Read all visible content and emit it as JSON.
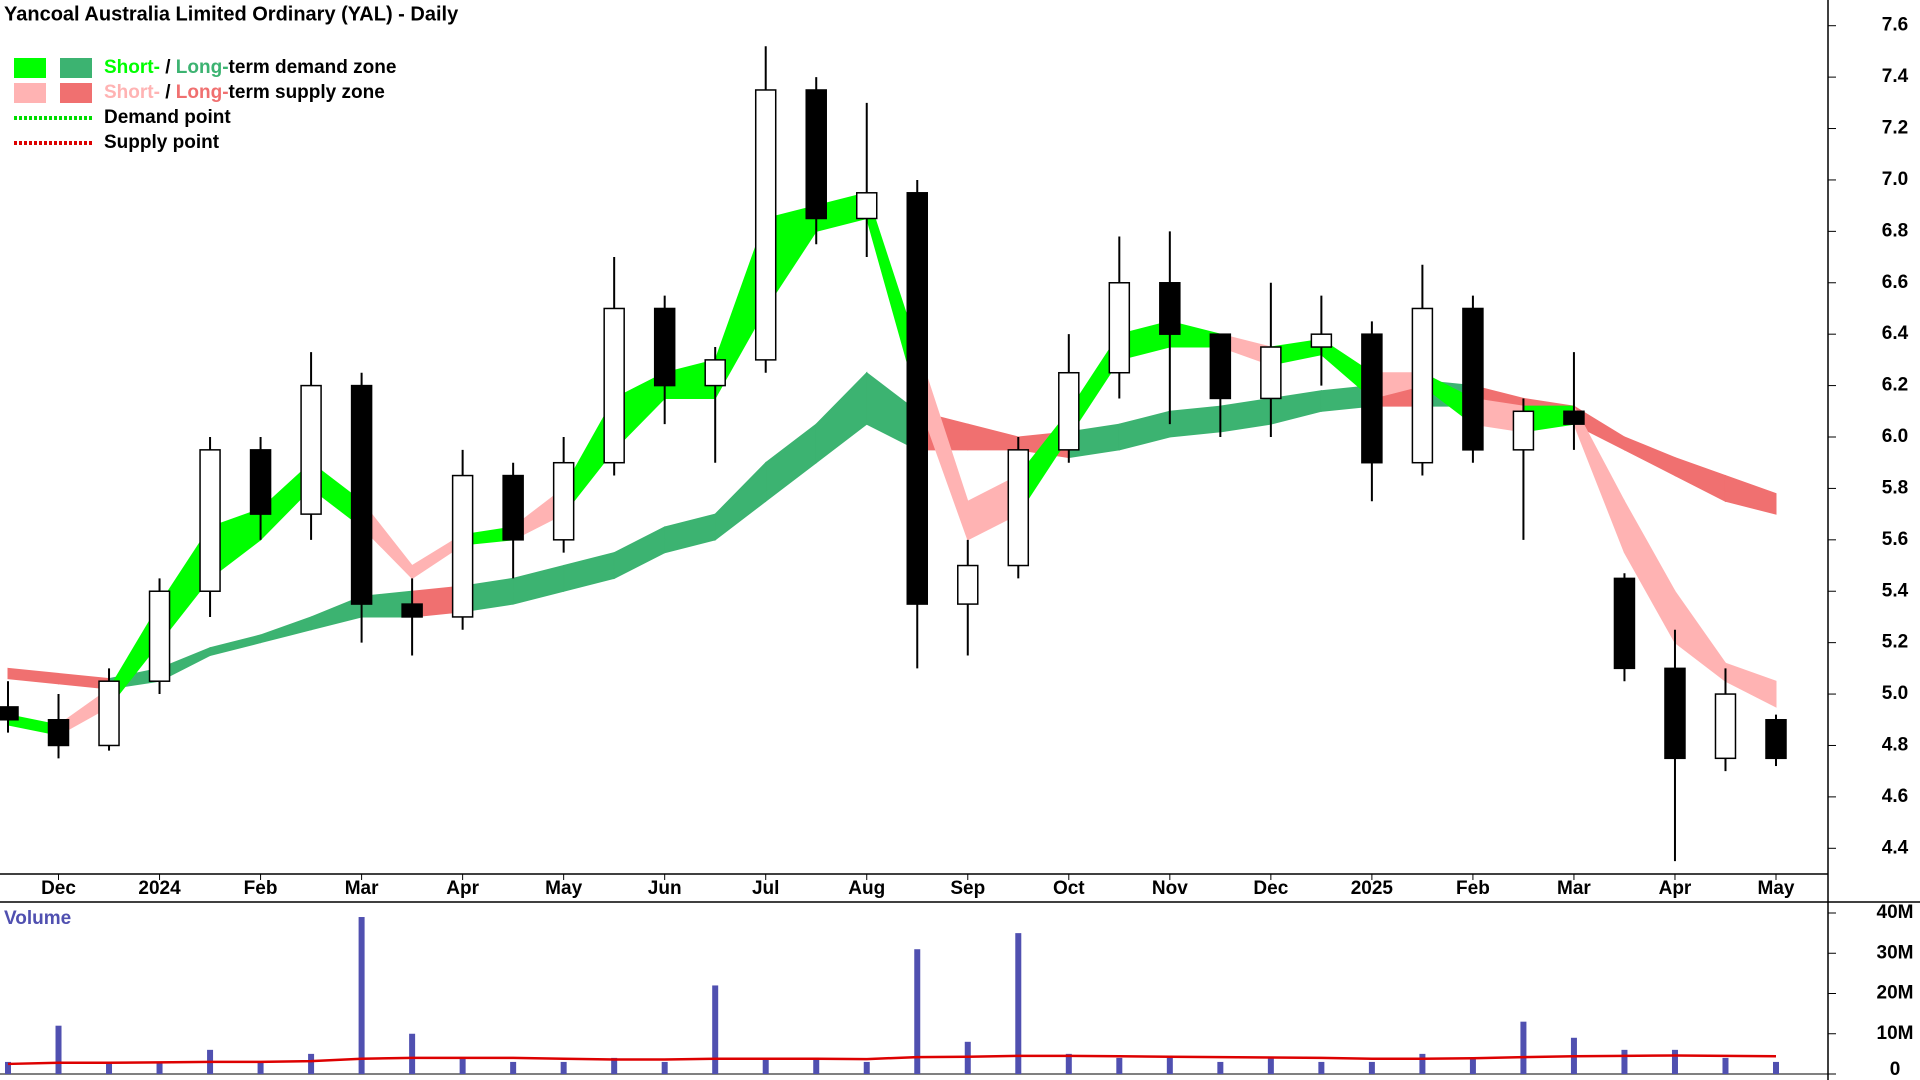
{
  "chart_data": {
    "type": "candlestick",
    "title": "Yancoal Australia Limited Ordinary (YAL) - Daily",
    "legend": [
      {
        "parts": [
          "Short-",
          " / ",
          "Long-",
          "term demand zone"
        ],
        "colors": [
          "#00ff00",
          "#3cb371"
        ]
      },
      {
        "parts": [
          "Short-",
          " / ",
          "Long-",
          "term supply zone"
        ],
        "colors": [
          "#ffb3b3",
          "#f07070"
        ]
      },
      {
        "label": "Demand point",
        "color": "#00dd00"
      },
      {
        "label": "Supply point",
        "color": "#dd0000"
      }
    ],
    "categories": [
      null,
      "Dec",
      null,
      "2024",
      null,
      "Feb",
      null,
      "Mar",
      null,
      "Apr",
      null,
      "May",
      null,
      "Jun",
      null,
      "Jul",
      null,
      "Aug",
      null,
      "Sep",
      null,
      "Oct",
      null,
      "Nov",
      null,
      "Dec",
      null,
      "2025",
      null,
      "Feb",
      null,
      "Mar",
      null,
      "Apr",
      null,
      "May"
    ],
    "open": [
      4.95,
      4.9,
      4.8,
      5.05,
      5.4,
      5.95,
      5.7,
      6.2,
      5.35,
      5.3,
      5.85,
      5.6,
      5.9,
      6.5,
      6.2,
      6.3,
      7.35,
      6.85,
      6.95,
      5.35,
      5.5,
      5.95,
      6.25,
      6.6,
      6.4,
      6.15,
      6.35,
      6.4,
      5.9,
      6.5,
      5.95,
      6.1,
      5.45,
      5.1,
      4.75,
      4.9
    ],
    "high": [
      5.05,
      5.0,
      5.1,
      5.45,
      6.0,
      6.0,
      6.33,
      6.25,
      5.45,
      5.95,
      5.9,
      6.0,
      6.7,
      6.55,
      6.35,
      7.52,
      7.4,
      7.3,
      7.0,
      5.6,
      6.0,
      6.4,
      6.78,
      6.8,
      6.4,
      6.6,
      6.55,
      6.45,
      6.67,
      6.55,
      6.15,
      6.33,
      5.47,
      5.25,
      5.1,
      4.92
    ],
    "low": [
      4.85,
      4.75,
      4.78,
      5.0,
      5.3,
      5.6,
      5.6,
      5.2,
      5.15,
      5.25,
      5.45,
      5.55,
      5.85,
      6.05,
      5.9,
      6.25,
      6.75,
      6.7,
      5.1,
      5.15,
      5.45,
      5.9,
      6.15,
      6.05,
      6.0,
      6.0,
      6.2,
      5.75,
      5.85,
      5.9,
      5.6,
      5.95,
      5.05,
      4.35,
      4.7,
      4.72
    ],
    "close": [
      4.9,
      4.8,
      5.05,
      5.4,
      5.95,
      5.7,
      6.2,
      5.35,
      5.3,
      5.85,
      5.6,
      5.9,
      6.5,
      6.2,
      6.3,
      7.35,
      6.85,
      6.95,
      5.35,
      5.5,
      5.95,
      6.25,
      6.6,
      6.4,
      6.15,
      6.35,
      6.4,
      5.9,
      6.5,
      5.95,
      6.1,
      6.05,
      5.1,
      4.75,
      5.0,
      4.75
    ],
    "short_zone": {
      "upper": [
        4.92,
        4.88,
        5.02,
        5.35,
        5.65,
        5.72,
        5.9,
        5.75,
        5.5,
        5.62,
        5.65,
        5.8,
        6.15,
        6.25,
        6.3,
        6.85,
        6.9,
        6.95,
        6.35,
        5.75,
        5.85,
        6.1,
        6.4,
        6.45,
        6.4,
        6.35,
        6.38,
        6.25,
        6.25,
        6.15,
        6.12,
        6.12,
        5.75,
        5.4,
        5.12,
        5.05
      ],
      "lower": [
        4.88,
        4.84,
        4.95,
        5.2,
        5.45,
        5.6,
        5.8,
        5.65,
        5.45,
        5.58,
        5.6,
        5.7,
        5.95,
        6.15,
        6.15,
        6.5,
        6.8,
        6.85,
        6.15,
        5.6,
        5.7,
        6.0,
        6.3,
        6.35,
        6.35,
        6.28,
        6.32,
        6.15,
        6.2,
        6.05,
        6.02,
        6.05,
        5.55,
        5.2,
        5.05,
        4.95
      ]
    },
    "long_zone": {
      "upper": [
        5.1,
        5.08,
        5.06,
        5.1,
        5.18,
        5.23,
        5.3,
        5.38,
        5.4,
        5.42,
        5.45,
        5.5,
        5.55,
        5.65,
        5.7,
        5.9,
        6.05,
        6.25,
        6.1,
        6.05,
        6.0,
        6.02,
        6.05,
        6.1,
        6.12,
        6.15,
        6.18,
        6.2,
        6.22,
        6.2,
        6.15,
        6.12,
        6.0,
        5.92,
        5.85,
        5.78
      ],
      "lower": [
        5.06,
        5.04,
        5.02,
        5.05,
        5.15,
        5.2,
        5.25,
        5.3,
        5.3,
        5.32,
        5.35,
        5.4,
        5.45,
        5.55,
        5.6,
        5.75,
        5.9,
        6.05,
        5.95,
        5.95,
        5.95,
        5.92,
        5.95,
        6.0,
        6.02,
        6.05,
        6.1,
        6.12,
        6.12,
        6.12,
        6.08,
        6.05,
        5.95,
        5.85,
        5.75,
        5.7
      ]
    },
    "ylim": [
      4.3,
      7.7
    ],
    "yticks": [
      4.4,
      4.6,
      4.8,
      {
        "value": 5,
        "label": "5.0"
      },
      5.2,
      5.4,
      5.6,
      5.8,
      {
        "value": 6,
        "label": "6.0"
      },
      6.2,
      6.4,
      6.6,
      6.8,
      {
        "value": 7,
        "label": "7.0"
      },
      7.2,
      7.4,
      7.6
    ],
    "volume": {
      "label": "Volume",
      "color": "#5050b0",
      "average_color": "#dd0000",
      "values": [
        3000000,
        12000000,
        3000000,
        3000000,
        6000000,
        3000000,
        5000000,
        39000000,
        10000000,
        4000000,
        3000000,
        3000000,
        4000000,
        3000000,
        22000000,
        4000000,
        4000000,
        3000000,
        31000000,
        8000000,
        35000000,
        5000000,
        4000000,
        4000000,
        3000000,
        4000000,
        3000000,
        3000000,
        5000000,
        4000000,
        13000000,
        9000000,
        6000000,
        6000000,
        4000000,
        3000000
      ],
      "average": [
        2500000,
        2800000,
        2800000,
        2900000,
        3000000,
        3000000,
        3200000,
        3800000,
        4000000,
        4000000,
        4000000,
        3800000,
        3600000,
        3600000,
        3800000,
        3800000,
        3800000,
        3700000,
        4200000,
        4300000,
        4500000,
        4500000,
        4400000,
        4300000,
        4200000,
        4100000,
        4000000,
        3800000,
        3800000,
        3900000,
        4200000,
        4400000,
        4500000,
        4600000,
        4500000,
        4400000
      ],
      "ylim": [
        0,
        40000000
      ],
      "yticks": [
        0,
        {
          "value": 10000000,
          "label": "10M"
        },
        {
          "value": 20000000,
          "label": "20M"
        },
        {
          "value": 30000000,
          "label": "30M"
        },
        {
          "value": 40000000,
          "label": "40M"
        }
      ]
    }
  }
}
